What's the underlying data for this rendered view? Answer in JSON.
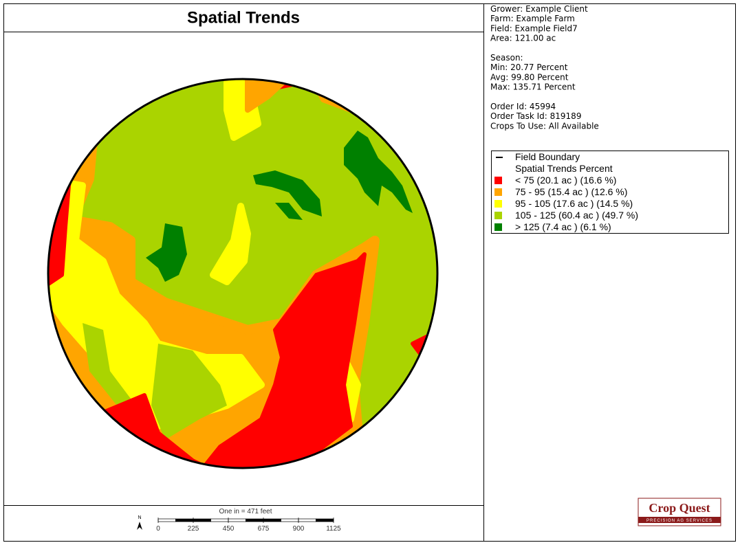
{
  "header": {
    "title": "Spatial Trends"
  },
  "info": {
    "sections": [
      [
        "Grower: Example Client",
        "Farm: Example Farm",
        "Field: Example Field7",
        "Area: 121.00 ac"
      ],
      [
        "Season:",
        "Min: 20.77 Percent",
        "Avg: 99.80 Percent",
        "Max: 135.71 Percent"
      ],
      [
        "Order Id: 45994",
        "Order Task Id: 819189",
        "Crops To Use: All Available"
      ]
    ]
  },
  "legend": {
    "boundary": "Field Boundary",
    "heading": "Spatial Trends Percent",
    "items": [
      {
        "label": "< 75 (20.1 ac ) (16.6 %)",
        "color": "#ff0000"
      },
      {
        "label": "75 - 95 (15.4 ac ) (12.6 %)",
        "color": "#ffa500"
      },
      {
        "label": "95 - 105 (17.6 ac ) (14.5 %)",
        "color": "#ffff00"
      },
      {
        "label": "105 - 125 (60.4 ac ) (49.7 %)",
        "color": "#aad400"
      },
      {
        "label": "> 125 (7.4 ac ) (6.1 %)",
        "color": "#008000"
      }
    ]
  },
  "scale_bar": {
    "caption": "One in = 471 feet",
    "north": "N",
    "ticks": [
      0,
      225,
      450,
      675,
      900,
      1125
    ]
  },
  "logo": {
    "name": "Crop Quest",
    "tagline": "PRECISION AG SERVICES"
  }
}
